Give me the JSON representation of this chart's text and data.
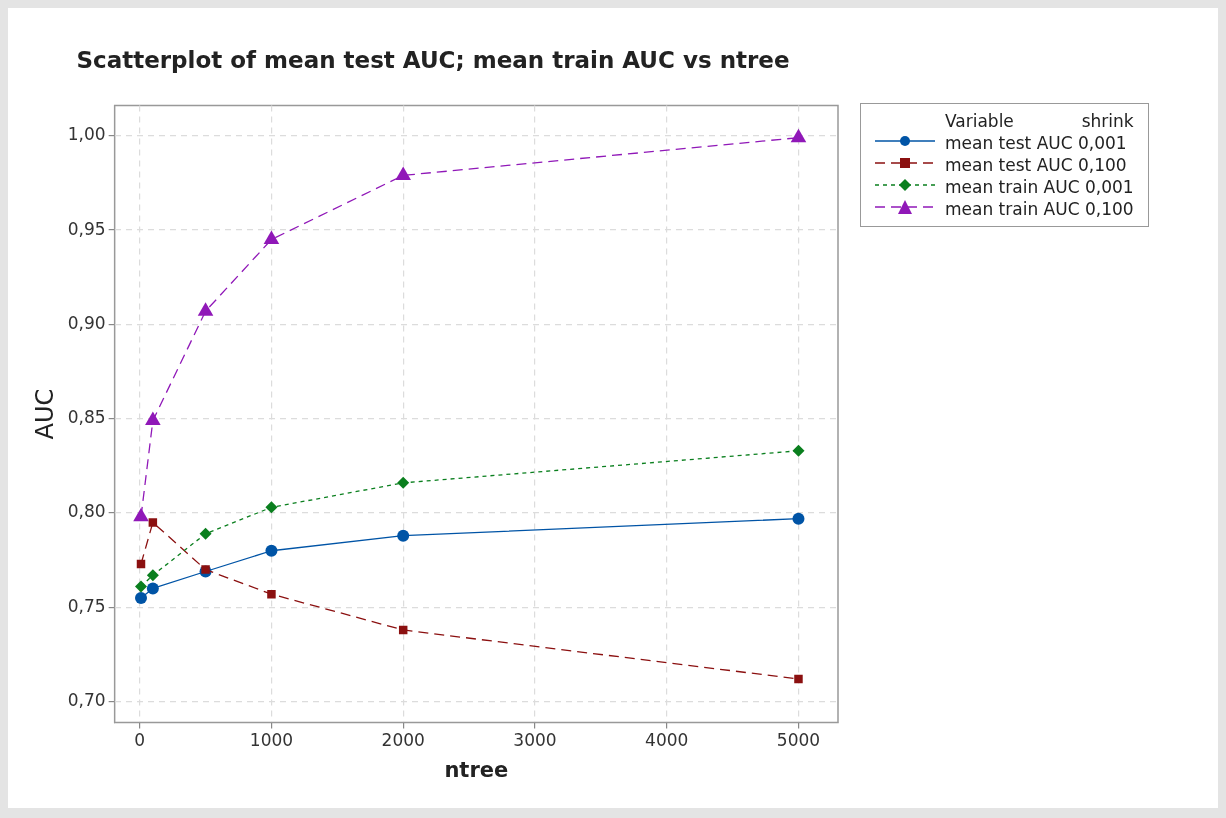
{
  "chart_data": {
    "type": "line",
    "title": "Scatterplot of mean test AUC; mean train AUC vs ntree",
    "xlabel": "ntree",
    "ylabel": "AUC",
    "legend_title": "Variable",
    "annotations": [
      "shrink"
    ],
    "legend": "right",
    "grid": true,
    "x": [
      10,
      100,
      500,
      1000,
      2000,
      5000
    ],
    "xlim": [
      -190,
      5300
    ],
    "xticks": [
      0,
      1000,
      2000,
      3000,
      4000,
      5000
    ],
    "ylim": [
      0.689,
      1.016
    ],
    "yticks": [
      {
        "value": 0.7,
        "label": "0,70"
      },
      {
        "value": 0.75,
        "label": "0,75"
      },
      {
        "value": 0.8,
        "label": "0,80"
      },
      {
        "value": 0.85,
        "label": "0,85"
      },
      {
        "value": 0.9,
        "label": "0,90"
      },
      {
        "value": 0.95,
        "label": "0,95"
      },
      {
        "value": 1.0,
        "label": "1,00"
      }
    ],
    "series": [
      {
        "name": "mean test AUC 0,001",
        "color": "#0054a6",
        "marker": "circle",
        "line_style": "solid",
        "values": [
          0.755,
          0.76,
          0.769,
          0.78,
          0.788,
          0.797
        ]
      },
      {
        "name": "mean test AUC 0,100",
        "color": "#8b1010",
        "marker": "square",
        "line_style": "dashed",
        "values": [
          0.773,
          0.795,
          0.77,
          0.757,
          0.738,
          0.712
        ]
      },
      {
        "name": "mean train AUC 0,001",
        "color": "#0a7f1e",
        "marker": "diamond",
        "line_style": "dotted",
        "values": [
          0.761,
          0.767,
          0.789,
          0.803,
          0.816,
          0.833
        ]
      },
      {
        "name": "mean train AUC 0,100",
        "color": "#9018b8",
        "marker": "triangle",
        "line_style": "dashed",
        "values": [
          0.798,
          0.849,
          0.907,
          0.945,
          0.979,
          0.999
        ]
      }
    ]
  }
}
